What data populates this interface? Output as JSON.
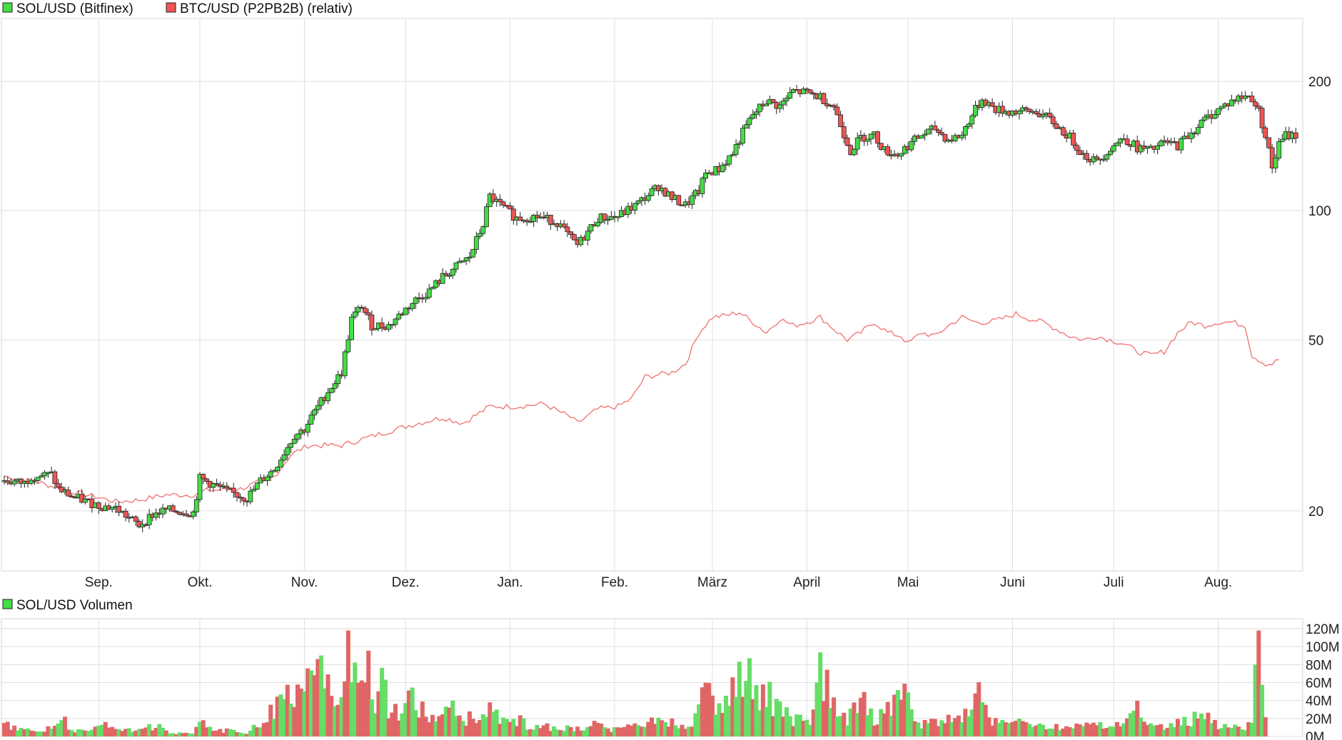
{
  "chart_data": [
    {
      "type": "candlestick",
      "legend": [
        {
          "label": "SOL/USD (Bitfinex)",
          "color": "#44dd44"
        },
        {
          "label": "BTC/USD (P2PB2B) (relativ)",
          "color": "#ee5555"
        }
      ],
      "y_scale": "log",
      "ylim": [
        14.5,
        280
      ],
      "y_ticks": [
        {
          "value": 200,
          "label": "200"
        },
        {
          "value": 100,
          "label": "100"
        },
        {
          "value": 50,
          "label": "50"
        },
        {
          "value": 20,
          "label": "20"
        }
      ],
      "x_ticks": [
        {
          "index": 28,
          "label": "Sep."
        },
        {
          "index": 58,
          "label": "Okt."
        },
        {
          "index": 89,
          "label": "Nov."
        },
        {
          "index": 119,
          "label": "Dez."
        },
        {
          "index": 150,
          "label": "Jan."
        },
        {
          "index": 181,
          "label": "Feb."
        },
        {
          "index": 210,
          "label": "März"
        },
        {
          "index": 238,
          "label": "April"
        },
        {
          "index": 268,
          "label": "Mai"
        },
        {
          "index": 299,
          "label": "Juni"
        },
        {
          "index": 329,
          "label": "Juli"
        },
        {
          "index": 360,
          "label": "Aug."
        }
      ],
      "n_days": 366,
      "sol_close_anchors": [
        [
          0,
          23.5
        ],
        [
          6,
          23.2
        ],
        [
          8,
          24.1
        ],
        [
          14,
          24.3
        ],
        [
          16,
          22.5
        ],
        [
          20,
          21.6
        ],
        [
          28,
          20.6
        ],
        [
          33,
          20.3
        ],
        [
          40,
          18.5
        ],
        [
          44,
          19.6
        ],
        [
          48,
          20.1
        ],
        [
          56,
          19.8
        ],
        [
          58,
          23.8
        ],
        [
          66,
          22.2
        ],
        [
          72,
          21.4
        ],
        [
          76,
          23.5
        ],
        [
          80,
          25
        ],
        [
          86,
          30
        ],
        [
          89,
          31
        ],
        [
          92,
          34
        ],
        [
          96,
          38
        ],
        [
          100,
          42
        ],
        [
          103,
          56
        ],
        [
          106,
          60
        ],
        [
          109,
          54
        ],
        [
          114,
          54
        ],
        [
          118,
          58
        ],
        [
          122,
          62
        ],
        [
          126,
          65
        ],
        [
          130,
          70
        ],
        [
          134,
          74
        ],
        [
          138,
          78
        ],
        [
          142,
          93
        ],
        [
          144,
          108
        ],
        [
          147,
          103
        ],
        [
          152,
          96
        ],
        [
          158,
          97
        ],
        [
          164,
          94
        ],
        [
          168,
          86
        ],
        [
          170,
          83
        ],
        [
          176,
          96
        ],
        [
          182,
          97
        ],
        [
          188,
          104
        ],
        [
          194,
          114
        ],
        [
          198,
          107
        ],
        [
          202,
          103
        ],
        [
          206,
          111
        ],
        [
          208,
          122
        ],
        [
          212,
          125
        ],
        [
          216,
          136
        ],
        [
          219,
          152
        ],
        [
          222,
          167
        ],
        [
          226,
          180
        ],
        [
          230,
          175
        ],
        [
          234,
          190
        ],
        [
          238,
          188
        ],
        [
          242,
          184
        ],
        [
          246,
          175
        ],
        [
          248,
          158
        ],
        [
          251,
          138
        ],
        [
          254,
          148
        ],
        [
          258,
          150
        ],
        [
          261,
          138
        ],
        [
          265,
          135
        ],
        [
          268,
          142
        ],
        [
          272,
          150
        ],
        [
          276,
          155
        ],
        [
          280,
          146
        ],
        [
          284,
          150
        ],
        [
          286,
          162
        ],
        [
          290,
          182
        ],
        [
          294,
          172
        ],
        [
          298,
          170
        ],
        [
          302,
          170
        ],
        [
          306,
          170
        ],
        [
          310,
          163
        ],
        [
          313,
          155
        ],
        [
          316,
          148
        ],
        [
          320,
          135
        ],
        [
          324,
          130
        ],
        [
          328,
          140
        ],
        [
          332,
          148
        ],
        [
          336,
          140
        ],
        [
          340,
          138
        ],
        [
          344,
          144
        ],
        [
          348,
          142
        ],
        [
          352,
          152
        ],
        [
          356,
          163
        ],
        [
          360,
          172
        ],
        [
          364,
          180
        ],
        [
          368,
          185
        ],
        [
          370,
          183
        ],
        [
          372,
          170
        ],
        [
          374,
          150
        ],
        [
          376,
          126
        ],
        [
          378,
          142
        ],
        [
          380,
          150
        ],
        [
          383,
          150
        ]
      ],
      "btc_relative_anchors": [
        [
          0,
          24.1
        ],
        [
          10,
          23.3
        ],
        [
          20,
          22.2
        ],
        [
          28,
          21.5
        ],
        [
          33,
          21.0
        ],
        [
          40,
          21.2
        ],
        [
          48,
          21.8
        ],
        [
          56,
          21.8
        ],
        [
          60,
          22.3
        ],
        [
          70,
          22.5
        ],
        [
          80,
          24.0
        ],
        [
          85,
          27.0
        ],
        [
          90,
          28.4
        ],
        [
          100,
          28.4
        ],
        [
          110,
          30.0
        ],
        [
          120,
          31.6
        ],
        [
          130,
          33.0
        ],
        [
          136,
          32.0
        ],
        [
          144,
          35.0
        ],
        [
          152,
          35.0
        ],
        [
          160,
          35.5
        ],
        [
          168,
          33.0
        ],
        [
          170,
          32.0
        ],
        [
          176,
          34.5
        ],
        [
          182,
          35.0
        ],
        [
          186,
          36.5
        ],
        [
          190,
          41.0
        ],
        [
          198,
          42.0
        ],
        [
          202,
          44.0
        ],
        [
          206,
          52.0
        ],
        [
          210,
          56.5
        ],
        [
          214,
          57.0
        ],
        [
          218,
          58.0
        ],
        [
          222,
          55.0
        ],
        [
          226,
          52.0
        ],
        [
          230,
          56.0
        ],
        [
          234,
          54.0
        ],
        [
          238,
          55.0
        ],
        [
          242,
          56.5
        ],
        [
          246,
          53.0
        ],
        [
          250,
          50.0
        ],
        [
          254,
          52.0
        ],
        [
          258,
          55.0
        ],
        [
          262,
          52.0
        ],
        [
          266,
          51.0
        ],
        [
          268,
          49.0
        ],
        [
          272,
          52.0
        ],
        [
          276,
          51.0
        ],
        [
          280,
          54.0
        ],
        [
          284,
          56.5
        ],
        [
          288,
          55.0
        ],
        [
          292,
          55.0
        ],
        [
          296,
          56.0
        ],
        [
          300,
          57.5
        ],
        [
          304,
          56.0
        ],
        [
          308,
          55.0
        ],
        [
          312,
          53.0
        ],
        [
          316,
          51.0
        ],
        [
          320,
          50.0
        ],
        [
          324,
          51.0
        ],
        [
          328,
          50.0
        ],
        [
          332,
          49.0
        ],
        [
          336,
          47.0
        ],
        [
          340,
          46.0
        ],
        [
          344,
          47.0
        ],
        [
          348,
          52.0
        ],
        [
          352,
          55.0
        ],
        [
          356,
          54.0
        ],
        [
          360,
          55.0
        ],
        [
          364,
          55.0
        ],
        [
          368,
          54.0
        ],
        [
          370,
          46.0
        ],
        [
          372,
          45.0
        ],
        [
          374,
          44.0
        ],
        [
          376,
          44.0
        ],
        [
          378,
          45.0
        ]
      ]
    },
    {
      "type": "bar",
      "legend": [
        {
          "label": "SOL/USD Volumen",
          "color": "#44dd44"
        }
      ],
      "ylim": [
        0,
        120
      ],
      "units": "M",
      "y_ticks": [
        {
          "value": 0,
          "label": "0M"
        },
        {
          "value": 20,
          "label": "20M"
        },
        {
          "value": 40,
          "label": "40M"
        },
        {
          "value": 60,
          "label": "60M"
        },
        {
          "value": 80,
          "label": "80M"
        },
        {
          "value": 100,
          "label": "100M"
        },
        {
          "value": 120,
          "label": "120M"
        }
      ],
      "volume_anchors": [
        [
          0,
          14
        ],
        [
          5,
          8
        ],
        [
          10,
          6
        ],
        [
          15,
          12
        ],
        [
          18,
          18
        ],
        [
          20,
          8
        ],
        [
          25,
          5
        ],
        [
          30,
          14
        ],
        [
          35,
          7
        ],
        [
          40,
          10
        ],
        [
          45,
          12
        ],
        [
          50,
          4
        ],
        [
          56,
          3
        ],
        [
          58,
          16
        ],
        [
          62,
          8
        ],
        [
          68,
          6
        ],
        [
          72,
          5
        ],
        [
          76,
          15
        ],
        [
          80,
          32
        ],
        [
          83,
          48
        ],
        [
          86,
          40
        ],
        [
          88,
          55
        ],
        [
          92,
          70
        ],
        [
          95,
          87
        ],
        [
          97,
          60
        ],
        [
          100,
          45
        ],
        [
          102,
          95
        ],
        [
          104,
          80
        ],
        [
          106,
          90
        ],
        [
          108,
          72
        ],
        [
          110,
          40
        ],
        [
          112,
          60
        ],
        [
          114,
          35
        ],
        [
          118,
          20
        ],
        [
          120,
          45
        ],
        [
          124,
          30
        ],
        [
          128,
          20
        ],
        [
          132,
          35
        ],
        [
          136,
          18
        ],
        [
          140,
          24
        ],
        [
          144,
          30
        ],
        [
          148,
          16
        ],
        [
          152,
          20
        ],
        [
          156,
          10
        ],
        [
          160,
          14
        ],
        [
          164,
          8
        ],
        [
          168,
          10
        ],
        [
          172,
          12
        ],
        [
          176,
          14
        ],
        [
          180,
          8
        ],
        [
          184,
          10
        ],
        [
          188,
          12
        ],
        [
          192,
          16
        ],
        [
          196,
          20
        ],
        [
          200,
          12
        ],
        [
          204,
          14
        ],
        [
          206,
          28
        ],
        [
          208,
          70
        ],
        [
          210,
          44
        ],
        [
          212,
          35
        ],
        [
          214,
          45
        ],
        [
          216,
          50
        ],
        [
          218,
          70
        ],
        [
          220,
          80
        ],
        [
          222,
          65
        ],
        [
          224,
          48
        ],
        [
          226,
          56
        ],
        [
          228,
          40
        ],
        [
          230,
          30
        ],
        [
          234,
          20
        ],
        [
          238,
          16
        ],
        [
          240,
          25
        ],
        [
          242,
          80
        ],
        [
          246,
          35
        ],
        [
          250,
          20
        ],
        [
          254,
          45
        ],
        [
          258,
          20
        ],
        [
          262,
          35
        ],
        [
          268,
          46
        ],
        [
          270,
          14
        ],
        [
          276,
          20
        ],
        [
          280,
          18
        ],
        [
          284,
          24
        ],
        [
          287,
          30
        ],
        [
          290,
          55
        ],
        [
          292,
          18
        ],
        [
          296,
          15
        ],
        [
          300,
          16
        ],
        [
          304,
          12
        ],
        [
          308,
          12
        ],
        [
          312,
          12
        ],
        [
          316,
          8
        ],
        [
          320,
          14
        ],
        [
          324,
          12
        ],
        [
          328,
          14
        ],
        [
          332,
          12
        ],
        [
          336,
          30
        ],
        [
          340,
          14
        ],
        [
          344,
          10
        ],
        [
          348,
          16
        ],
        [
          352,
          20
        ],
        [
          356,
          25
        ],
        [
          360,
          10
        ],
        [
          364,
          14
        ],
        [
          368,
          12
        ],
        [
          370,
          26
        ],
        [
          372,
          108
        ],
        [
          374,
          36
        ]
      ],
      "red_day_mod": [
        2,
        5
      ]
    }
  ]
}
